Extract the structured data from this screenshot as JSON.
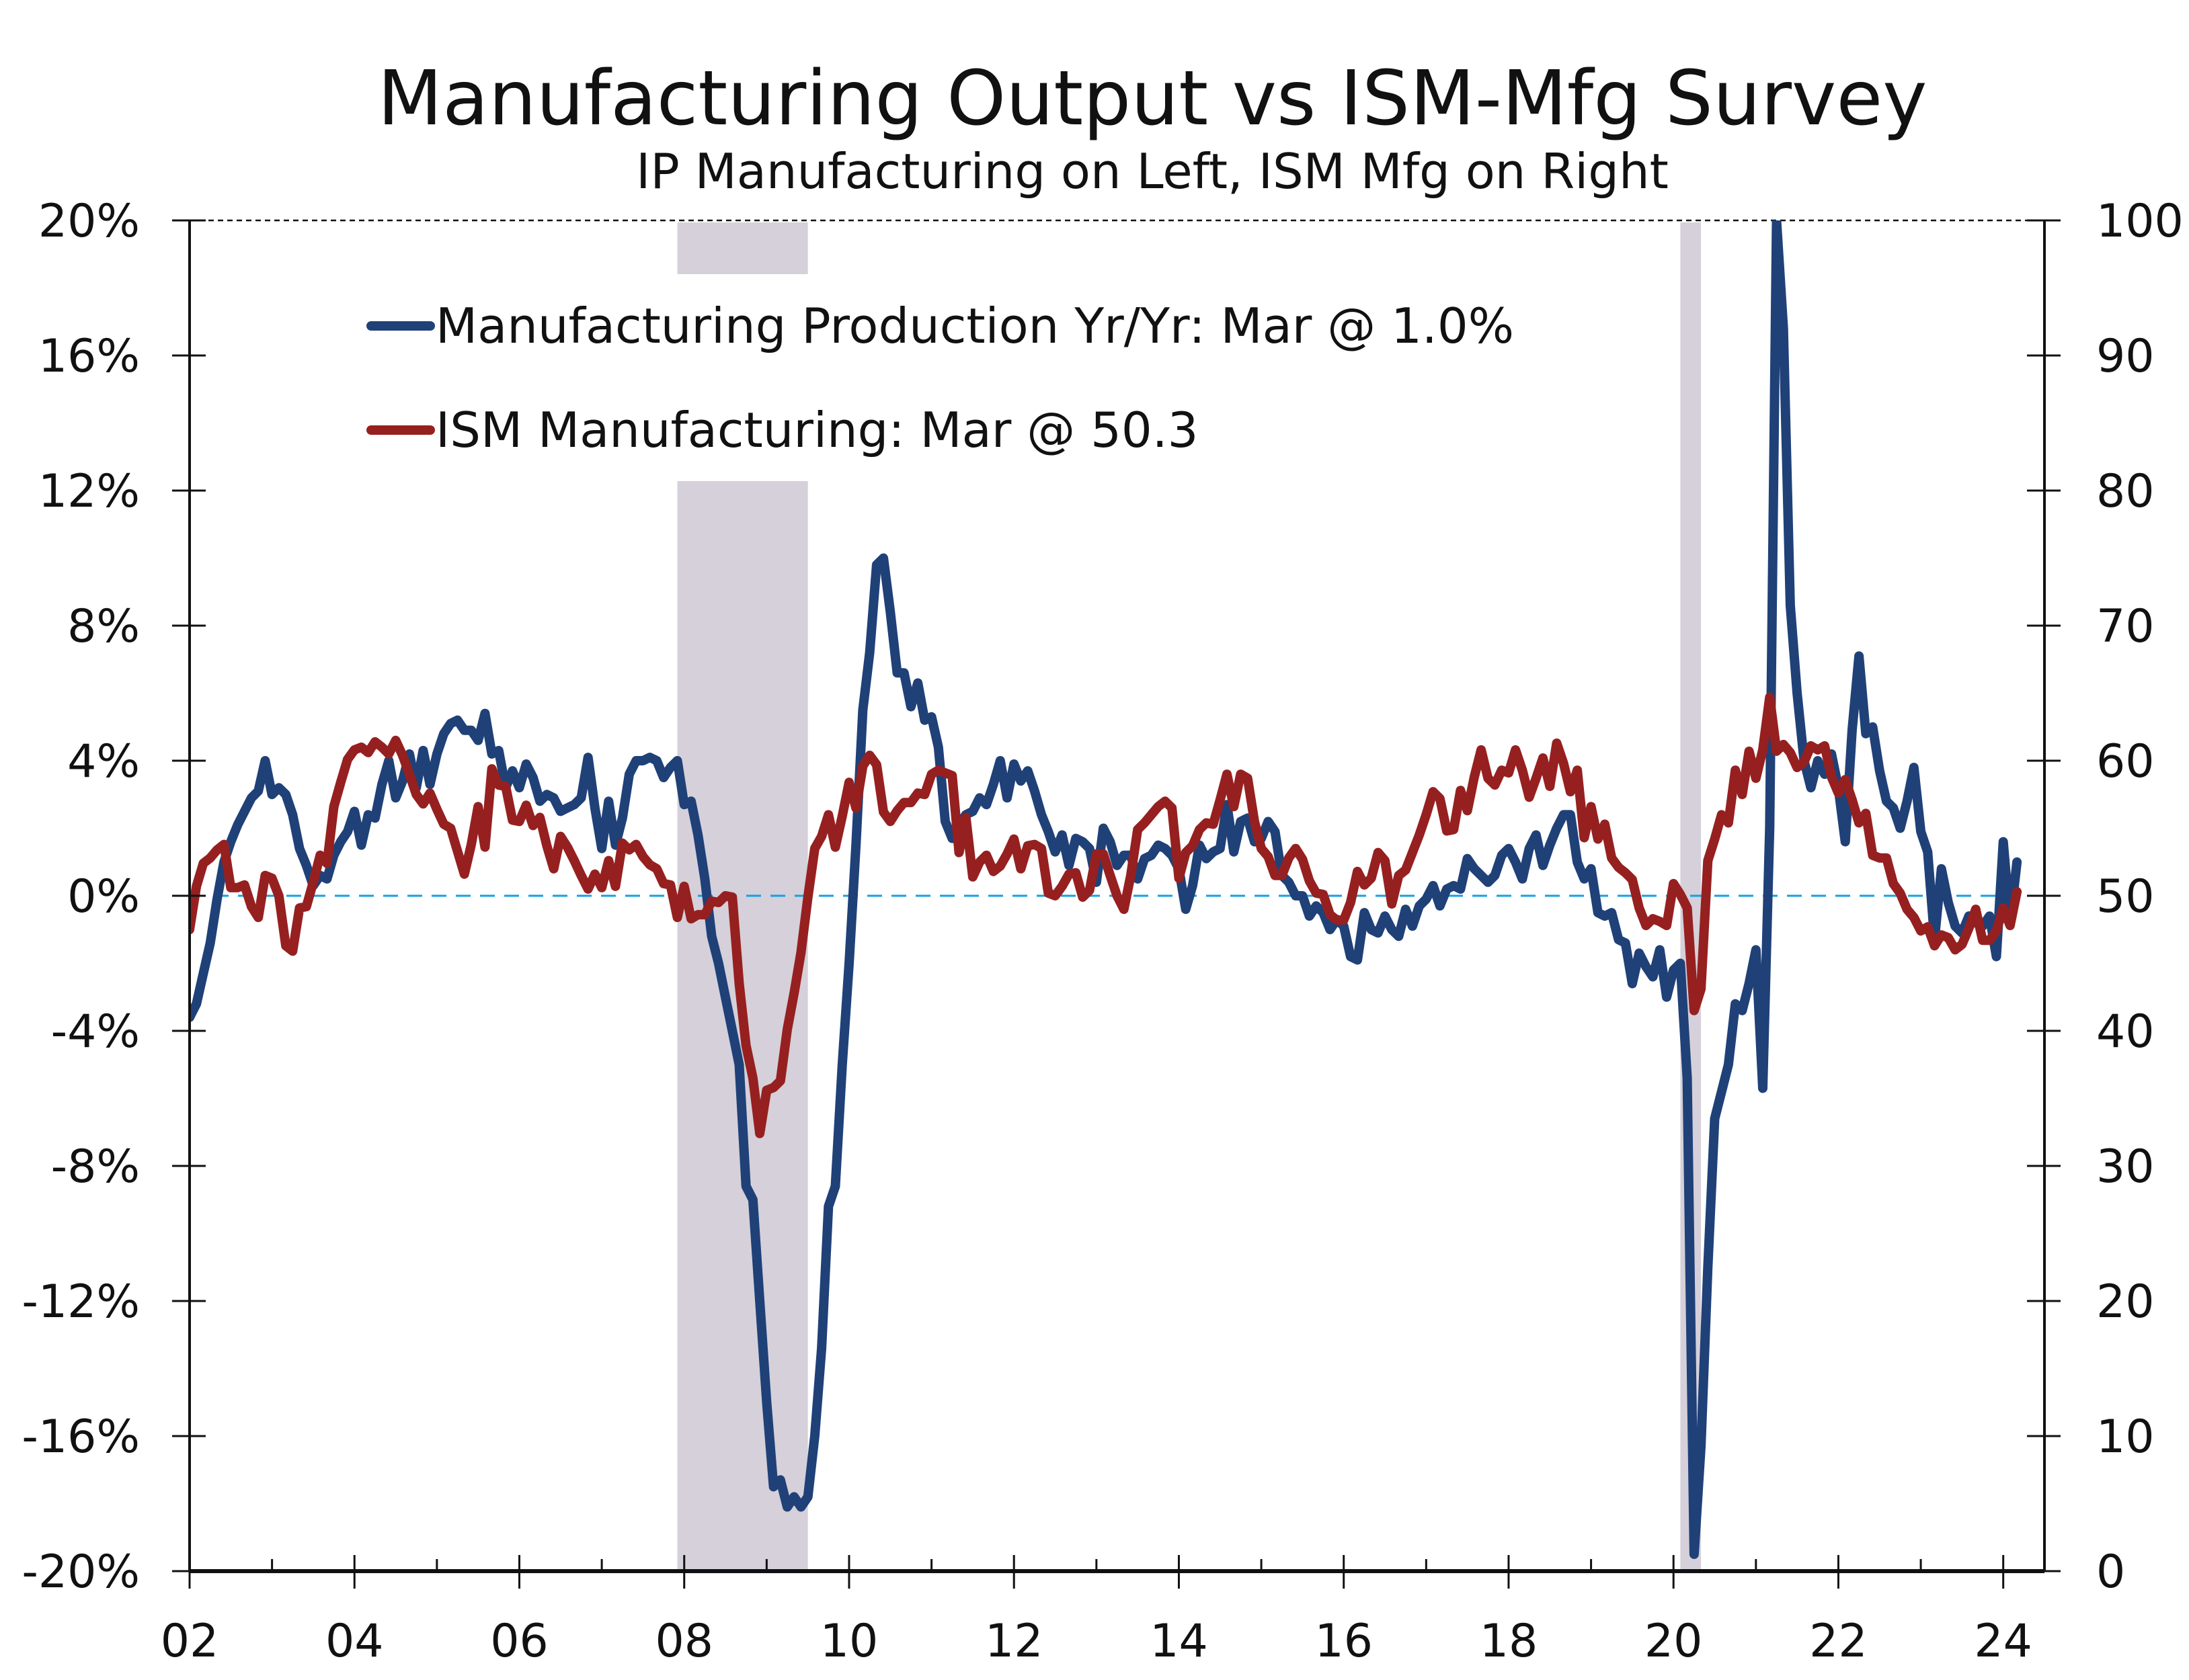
{
  "chart_data": {
    "type": "line",
    "title": "Manufacturing Output vs ISM-Mfg Survey",
    "subtitle": "IP Manufacturing on Left, ISM Mfg on Right",
    "xlabel": "",
    "ylabel_left": "",
    "ylabel_right": "",
    "x_start": "2002-01",
    "x_end": "2024-03",
    "frequency": "monthly",
    "xlim": [
      2002.0,
      2024.5
    ],
    "x_ticks": [
      2002,
      2004,
      2006,
      2008,
      2010,
      2012,
      2014,
      2016,
      2018,
      2020,
      2022,
      2024
    ],
    "x_tick_labels": [
      "02",
      "04",
      "06",
      "08",
      "10",
      "12",
      "14",
      "16",
      "18",
      "20",
      "22",
      "24"
    ],
    "y_left": {
      "range": [
        -20,
        20
      ],
      "ticks": [
        20,
        16,
        12,
        8,
        4,
        0,
        -4,
        -8,
        -12,
        -16,
        -20
      ],
      "tick_labels": [
        "20%",
        "16%",
        "12%",
        "8%",
        "4%",
        "0%",
        "-4%",
        "-8%",
        "-12%",
        "-16%",
        "-20%"
      ]
    },
    "y_right": {
      "range": [
        0,
        100
      ],
      "ticks": [
        100,
        90,
        80,
        70,
        60,
        50,
        40,
        30,
        20,
        10,
        0
      ],
      "tick_labels": [
        "100",
        "90",
        "80",
        "70",
        "60",
        "50",
        "40",
        "30",
        "20",
        "10",
        "0"
      ]
    },
    "reference_line": {
      "axis": "left",
      "value": 0,
      "style": "dashed",
      "color": "#14a0e6"
    },
    "top_border": {
      "style": "dashed",
      "color": "#111111"
    },
    "recessions": [
      {
        "start": "2007-12",
        "end": "2009-06"
      },
      {
        "start": "2020-02",
        "end": "2020-04"
      }
    ],
    "recession_color": "#d5d0d9",
    "legend": {
      "placement": "top-left"
    },
    "series": [
      {
        "name": "Manufacturing Production Yr/Yr: Mar @ 1.0%",
        "axis": "left",
        "color": "#1f4178",
        "unit": "%",
        "values": [
          -3.6,
          -3.2,
          -2.3,
          -1.4,
          -0.1,
          1.0,
          1.6,
          2.1,
          2.5,
          2.9,
          3.1,
          4.0,
          3.0,
          3.2,
          3.0,
          2.4,
          1.4,
          0.9,
          0.3,
          0.6,
          0.5,
          1.2,
          1.6,
          1.9,
          2.5,
          1.5,
          2.4,
          2.3,
          3.3,
          4.0,
          2.9,
          3.4,
          4.2,
          3.2,
          4.3,
          3.3,
          4.2,
          4.8,
          5.1,
          5.2,
          4.9,
          4.9,
          4.6,
          5.4,
          4.2,
          4.3,
          3.2,
          3.7,
          3.2,
          3.9,
          3.5,
          2.8,
          3.0,
          2.9,
          2.5,
          2.6,
          2.7,
          2.9,
          4.1,
          2.6,
          1.4,
          2.8,
          1.5,
          2.3,
          3.6,
          4.0,
          4.0,
          4.1,
          4.0,
          3.5,
          3.8,
          4.0,
          2.7,
          2.8,
          1.8,
          0.5,
          -1.2,
          -2.0,
          -3.0,
          -4.0,
          -5.0,
          -8.6,
          -9.0,
          -12.0,
          -15.0,
          -17.5,
          -17.3,
          -18.1,
          -17.8,
          -18.1,
          -17.8,
          -16.0,
          -13.4,
          -9.2,
          -8.6,
          -5.0,
          -2.0,
          1.5,
          5.5,
          7.2,
          9.8,
          10.0,
          8.4,
          6.6,
          6.6,
          5.6,
          6.3,
          5.2,
          5.3,
          4.4,
          2.2,
          1.7,
          2.1,
          2.4,
          2.5,
          2.9,
          2.7,
          3.3,
          4.0,
          2.9,
          3.9,
          3.4,
          3.7,
          3.1,
          2.4,
          1.9,
          1.3,
          1.8,
          0.9,
          1.7,
          1.6,
          1.4,
          0.4,
          2.0,
          1.6,
          0.9,
          1.2,
          1.2,
          0.5,
          1.1,
          1.2,
          1.5,
          1.4,
          1.2,
          0.8,
          -0.4,
          0.3,
          1.5,
          1.1,
          1.3,
          1.4,
          2.7,
          1.3,
          2.2,
          2.3,
          1.6,
          1.7,
          2.2,
          1.9,
          0.6,
          0.4,
          0.0,
          0.0,
          -0.6,
          -0.3,
          -0.5,
          -1.0,
          -0.7,
          -0.9,
          -1.8,
          -1.9,
          -0.5,
          -1.0,
          -1.1,
          -0.6,
          -1.0,
          -1.2,
          -0.4,
          -0.9,
          -0.3,
          -0.1,
          0.3,
          -0.3,
          0.2,
          0.3,
          0.2,
          1.1,
          0.8,
          0.6,
          0.4,
          0.6,
          1.2,
          1.4,
          1.0,
          0.5,
          1.4,
          1.8,
          0.9,
          1.5,
          2.0,
          2.4,
          2.4,
          1.0,
          0.5,
          0.8,
          -0.5,
          -0.6,
          -0.5,
          -1.3,
          -1.4,
          -2.6,
          -1.7,
          -2.1,
          -2.4,
          -1.6,
          -3.0,
          -2.2,
          -2.0,
          -5.4,
          -19.5,
          -16.3,
          -11.0,
          -6.6,
          -5.8,
          -5.0,
          -3.2,
          -3.4,
          -2.6,
          -1.6,
          -5.7,
          2.0,
          20.0,
          16.8,
          8.6,
          6.0,
          4.0,
          3.2,
          4.0,
          3.6,
          4.2,
          3.2,
          1.6,
          4.9,
          7.1,
          4.8,
          5.0,
          3.7,
          2.8,
          2.6,
          2.0,
          2.8,
          3.8,
          1.9,
          1.3,
          -1.3,
          0.8,
          -0.2,
          -0.9,
          -1.1,
          -0.6,
          -0.8,
          -0.9,
          -0.6,
          -1.8,
          1.6,
          -0.8,
          1.0
        ]
      },
      {
        "name": "ISM Manufacturing: Mar @ 50.3",
        "axis": "right",
        "color": "#962020",
        "unit": "index",
        "values": [
          47.5,
          50.7,
          52.4,
          52.8,
          53.4,
          53.8,
          50.6,
          50.6,
          50.8,
          49.2,
          48.4,
          51.5,
          51.3,
          50.0,
          46.3,
          45.9,
          49.1,
          49.2,
          51.0,
          53.0,
          52.4,
          56.6,
          58.4,
          60.1,
          60.8,
          61.0,
          60.6,
          61.4,
          61.0,
          60.5,
          61.5,
          60.4,
          59.0,
          57.5,
          56.8,
          57.6,
          56.4,
          55.3,
          55.0,
          53.3,
          51.6,
          53.8,
          56.6,
          53.6,
          59.4,
          58.2,
          58.1,
          55.6,
          55.5,
          56.7,
          55.2,
          55.8,
          53.7,
          52.0,
          54.4,
          53.6,
          52.6,
          51.5,
          50.5,
          51.6,
          50.6,
          52.6,
          50.7,
          53.9,
          53.4,
          53.8,
          52.9,
          52.3,
          52.0,
          50.9,
          50.8,
          48.4,
          50.7,
          48.3,
          48.6,
          48.6,
          49.6,
          49.5,
          50.0,
          49.9,
          43.5,
          38.9,
          36.5,
          32.4,
          35.6,
          35.8,
          36.3,
          40.1,
          42.8,
          45.8,
          49.9,
          53.5,
          54.4,
          56.0,
          53.6,
          55.9,
          58.4,
          56.5,
          59.6,
          60.4,
          59.7,
          56.2,
          55.5,
          56.3,
          56.9,
          56.9,
          57.6,
          57.5,
          59.0,
          59.3,
          59.1,
          58.9,
          53.2,
          55.8,
          51.4,
          52.5,
          53.0,
          51.8,
          52.2,
          53.1,
          54.2,
          52.0,
          53.7,
          53.8,
          53.5,
          50.2,
          50.0,
          50.7,
          51.6,
          51.7,
          49.9,
          50.4,
          53.1,
          53.1,
          51.5,
          50.0,
          49.0,
          51.5,
          54.9,
          55.4,
          56.0,
          56.6,
          57.0,
          56.5,
          51.3,
          53.2,
          53.7,
          54.9,
          55.4,
          55.3,
          57.1,
          59.0,
          56.6,
          59.0,
          58.7,
          55.5,
          53.5,
          52.9,
          51.5,
          51.5,
          52.8,
          53.5,
          52.7,
          51.1,
          50.2,
          50.1,
          48.6,
          48.2,
          48.2,
          49.5,
          51.8,
          50.8,
          51.3,
          53.2,
          52.6,
          49.4,
          51.5,
          51.9,
          53.2,
          54.5,
          56.0,
          57.7,
          57.2,
          54.8,
          54.9,
          57.8,
          56.3,
          58.8,
          60.8,
          58.7,
          58.2,
          59.3,
          59.1,
          60.8,
          59.3,
          57.3,
          58.7,
          60.2,
          58.1,
          61.3,
          59.8,
          57.7,
          59.3,
          54.3,
          56.6,
          54.2,
          55.3,
          52.8,
          52.1,
          51.7,
          51.2,
          49.1,
          47.8,
          48.3,
          48.1,
          47.8,
          50.9,
          50.1,
          49.1,
          41.5,
          43.1,
          52.6,
          54.2,
          56.0,
          55.4,
          59.3,
          57.5,
          60.7,
          58.7,
          60.8,
          64.7,
          60.7,
          61.2,
          60.6,
          59.5,
          59.9,
          61.1,
          60.8,
          61.1,
          58.8,
          57.6,
          58.6,
          57.1,
          55.4,
          56.1,
          53.0,
          52.8,
          52.8,
          50.9,
          50.2,
          49.0,
          48.4,
          47.4,
          47.7,
          46.3,
          47.1,
          46.9,
          46.0,
          46.4,
          47.6,
          49.0,
          46.7,
          46.7,
          47.4,
          49.1,
          47.8,
          50.3
        ]
      }
    ]
  }
}
